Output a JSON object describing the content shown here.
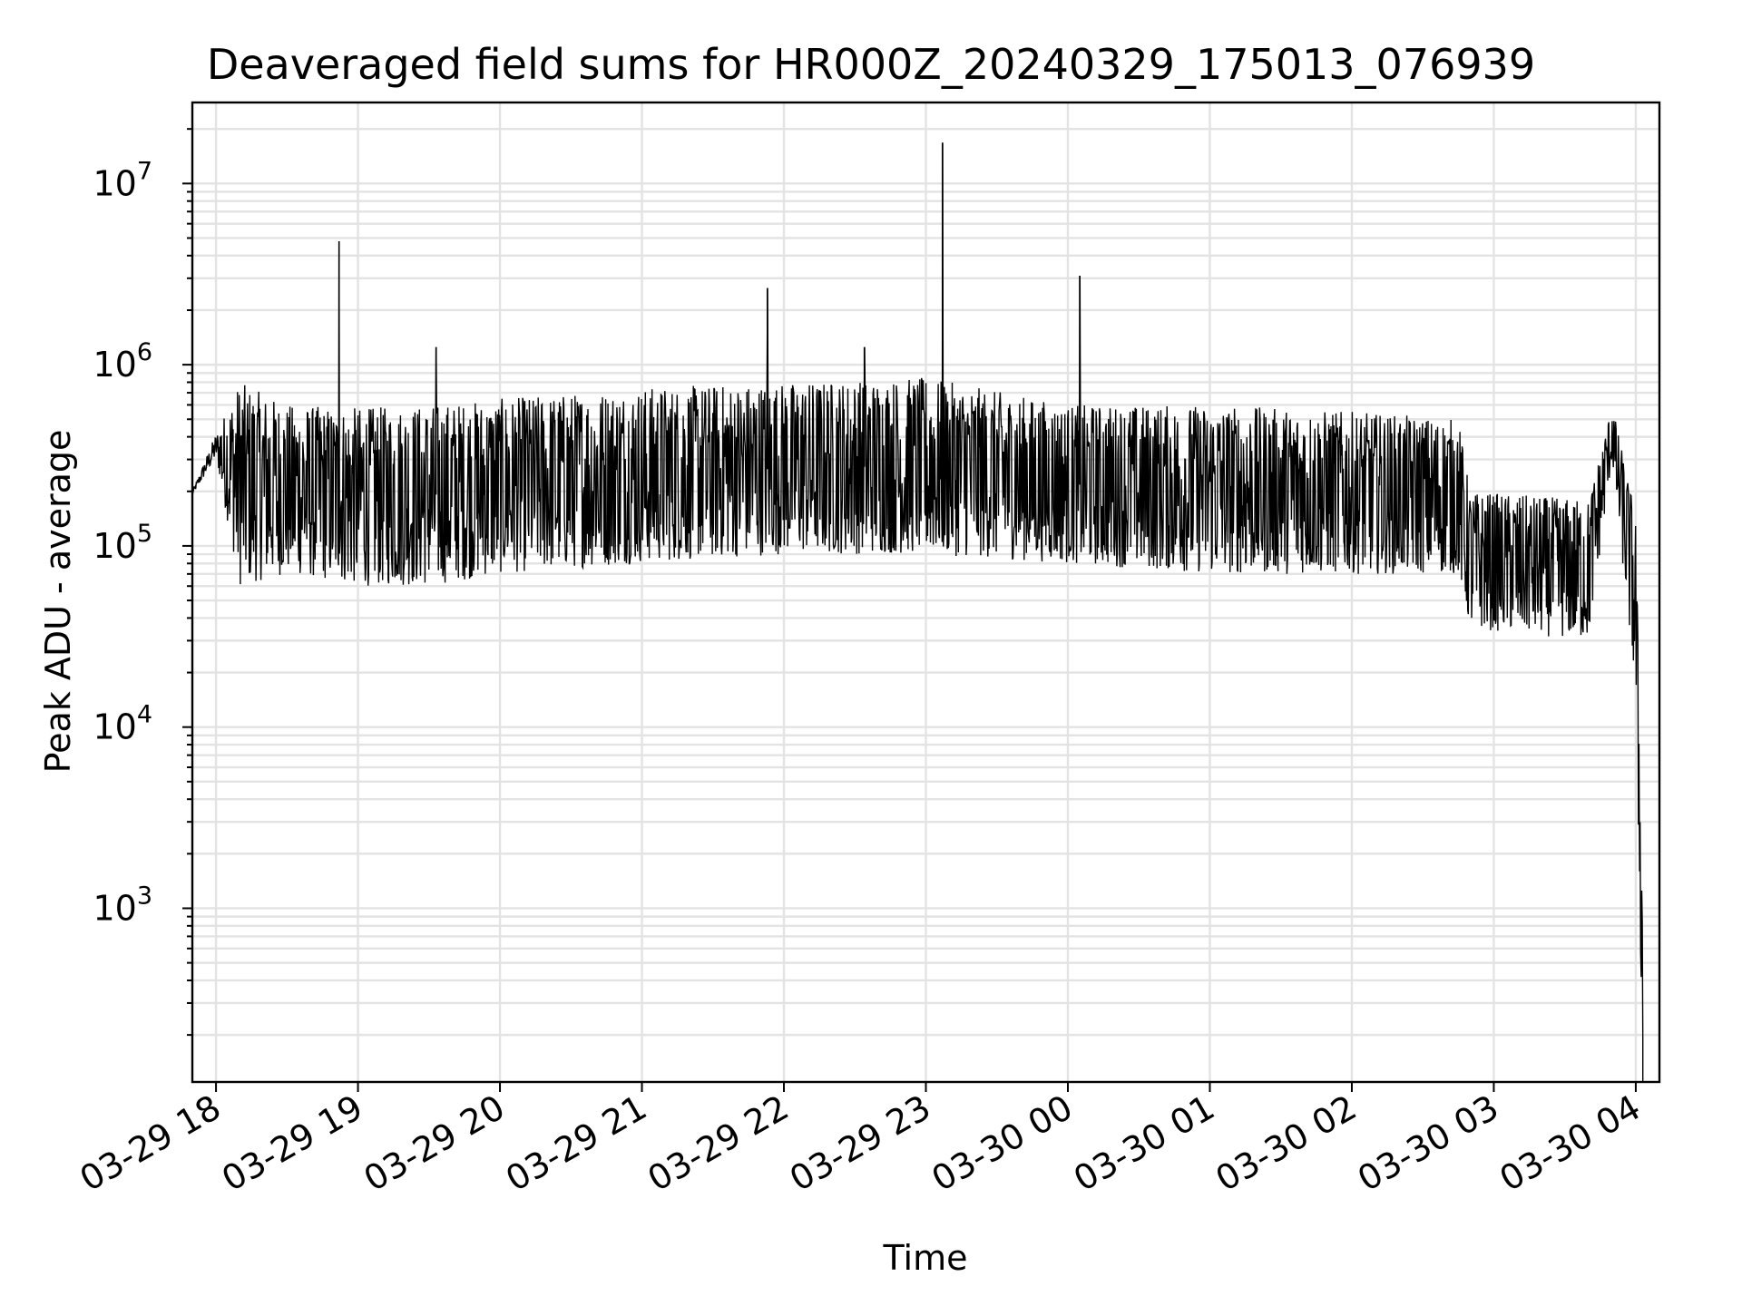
{
  "chart_data": {
    "type": "line",
    "title": "Deaveraged field sums for HR000Z_20240329_175013_076939",
    "xlabel": "Time",
    "ylabel": "Peak ADU - average",
    "x_axis": {
      "kind": "datetime",
      "range": [
        "2024-03-29 17:50",
        "2024-03-30 04:10"
      ],
      "ticks": [
        "2024-03-29 18:00",
        "2024-03-29 19:00",
        "2024-03-29 20:00",
        "2024-03-29 21:00",
        "2024-03-29 22:00",
        "2024-03-29 23:00",
        "2024-03-30 00:00",
        "2024-03-30 01:00",
        "2024-03-30 02:00",
        "2024-03-30 03:00",
        "2024-03-30 04:00"
      ],
      "tick_labels": [
        "03-29 18",
        "03-29 19",
        "03-29 20",
        "03-29 21",
        "03-29 22",
        "03-29 23",
        "03-30 00",
        "03-30 01",
        "03-30 02",
        "03-30 03",
        "03-30 04"
      ]
    },
    "y_axis": {
      "scale": "log",
      "range": [
        110,
        28000000
      ],
      "ticks": [
        1000,
        10000,
        100000,
        1000000,
        10000000
      ],
      "tick_labels": [
        {
          "base": "10",
          "exp": "3"
        },
        {
          "base": "10",
          "exp": "4"
        },
        {
          "base": "10",
          "exp": "5"
        },
        {
          "base": "10",
          "exp": "6"
        },
        {
          "base": "10",
          "exp": "7"
        }
      ]
    },
    "grid": true,
    "series": [
      {
        "color": "#000000",
        "envelope": [
          {
            "x": "2024-03-29 17:50",
            "low": 190000,
            "high": 200000
          },
          {
            "x": "2024-03-29 18:00",
            "low": 300000,
            "high": 420000
          },
          {
            "x": "2024-03-29 18:10",
            "low": 60000,
            "high": 800000
          },
          {
            "x": "2024-03-29 18:30",
            "low": 70000,
            "high": 600000
          },
          {
            "x": "2024-03-29 19:00",
            "low": 60000,
            "high": 580000
          },
          {
            "x": "2024-03-29 19:30",
            "low": 60000,
            "high": 600000
          },
          {
            "x": "2024-03-29 20:00",
            "low": 70000,
            "high": 650000
          },
          {
            "x": "2024-03-29 21:00",
            "low": 80000,
            "high": 750000
          },
          {
            "x": "2024-03-29 22:00",
            "low": 90000,
            "high": 800000
          },
          {
            "x": "2024-03-29 23:00",
            "low": 90000,
            "high": 850000
          },
          {
            "x": "2024-03-30 00:00",
            "low": 80000,
            "high": 600000
          },
          {
            "x": "2024-03-30 01:00",
            "low": 70000,
            "high": 600000
          },
          {
            "x": "2024-03-30 02:00",
            "low": 70000,
            "high": 550000
          },
          {
            "x": "2024-03-30 02:45",
            "low": 70000,
            "high": 500000
          },
          {
            "x": "2024-03-30 02:50",
            "low": 35000,
            "high": 200000
          },
          {
            "x": "2024-03-30 03:40",
            "low": 30000,
            "high": 180000
          },
          {
            "x": "2024-03-30 03:50",
            "low": 300000,
            "high": 600000
          },
          {
            "x": "2024-03-30 04:00",
            "low": 15000,
            "high": 150000
          },
          {
            "x": "2024-03-30 04:03",
            "low": 110,
            "high": 900
          }
        ],
        "spikes": [
          {
            "x": "2024-03-29 18:52",
            "y": 4800000
          },
          {
            "x": "2024-03-29 19:33",
            "y": 1250000
          },
          {
            "x": "2024-03-29 21:53",
            "y": 2650000
          },
          {
            "x": "2024-03-29 22:34",
            "y": 1250000
          },
          {
            "x": "2024-03-29 23:07",
            "y": 16800000
          },
          {
            "x": "2024-03-30 00:05",
            "y": 3100000
          }
        ]
      }
    ]
  }
}
